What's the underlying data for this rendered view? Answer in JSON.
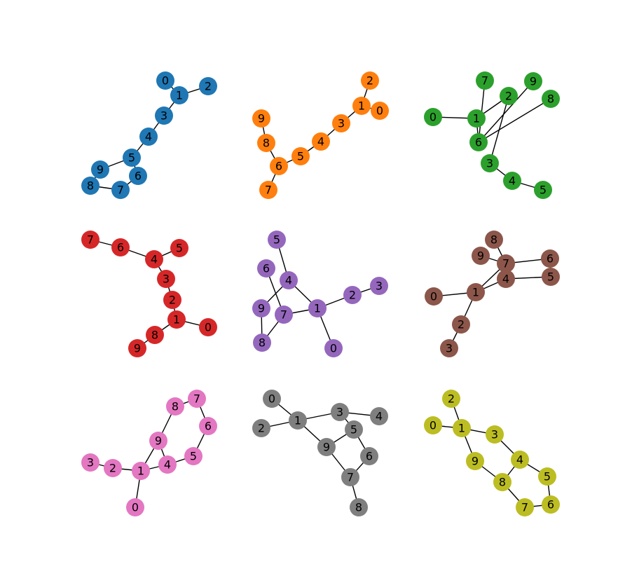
{
  "graphs": [
    {
      "id": "graph-blue",
      "color": "#1f77b4",
      "nodes": [
        {
          "label": "0"
        },
        {
          "label": "1"
        },
        {
          "label": "2"
        },
        {
          "label": "3"
        },
        {
          "label": "4"
        },
        {
          "label": "5"
        },
        {
          "label": "6"
        },
        {
          "label": "7"
        },
        {
          "label": "8"
        },
        {
          "label": "9"
        }
      ],
      "edges": [
        [
          0,
          1
        ],
        [
          1,
          2
        ],
        [
          1,
          3
        ],
        [
          3,
          4
        ],
        [
          4,
          5
        ],
        [
          5,
          9
        ],
        [
          5,
          6
        ],
        [
          9,
          8
        ],
        [
          8,
          7
        ],
        [
          7,
          6
        ]
      ]
    },
    {
      "id": "graph-orange",
      "color": "#ff7f0e",
      "nodes": [
        {
          "label": "0"
        },
        {
          "label": "1"
        },
        {
          "label": "2"
        },
        {
          "label": "3"
        },
        {
          "label": "4"
        },
        {
          "label": "5"
        },
        {
          "label": "6"
        },
        {
          "label": "7"
        },
        {
          "label": "8"
        },
        {
          "label": "9"
        }
      ],
      "edges": [
        [
          2,
          1
        ],
        [
          1,
          0
        ],
        [
          1,
          3
        ],
        [
          3,
          4
        ],
        [
          4,
          5
        ],
        [
          5,
          6
        ],
        [
          6,
          7
        ],
        [
          6,
          8
        ],
        [
          8,
          9
        ]
      ]
    },
    {
      "id": "graph-green",
      "color": "#2ca02c",
      "nodes": [
        {
          "label": "0"
        },
        {
          "label": "1"
        },
        {
          "label": "2"
        },
        {
          "label": "3"
        },
        {
          "label": "4"
        },
        {
          "label": "5"
        },
        {
          "label": "6"
        },
        {
          "label": "7"
        },
        {
          "label": "8"
        },
        {
          "label": "9"
        }
      ],
      "edges": [
        [
          7,
          6
        ],
        [
          6,
          9
        ],
        [
          6,
          8
        ],
        [
          6,
          1
        ],
        [
          0,
          1
        ],
        [
          1,
          2
        ],
        [
          2,
          3
        ],
        [
          3,
          4
        ],
        [
          4,
          5
        ]
      ]
    },
    {
      "id": "graph-red",
      "color": "#d62728",
      "nodes": [
        {
          "label": "0"
        },
        {
          "label": "1"
        },
        {
          "label": "2"
        },
        {
          "label": "3"
        },
        {
          "label": "4"
        },
        {
          "label": "5"
        },
        {
          "label": "6"
        },
        {
          "label": "7"
        },
        {
          "label": "8"
        },
        {
          "label": "9"
        }
      ],
      "edges": [
        [
          7,
          6
        ],
        [
          6,
          4
        ],
        [
          4,
          5
        ],
        [
          4,
          3
        ],
        [
          3,
          2
        ],
        [
          2,
          1
        ],
        [
          1,
          0
        ],
        [
          1,
          8
        ],
        [
          8,
          9
        ]
      ]
    },
    {
      "id": "graph-purple",
      "color": "#9467bd",
      "nodes": [
        {
          "label": "0"
        },
        {
          "label": "1"
        },
        {
          "label": "2"
        },
        {
          "label": "3"
        },
        {
          "label": "4"
        },
        {
          "label": "5"
        },
        {
          "label": "6"
        },
        {
          "label": "7"
        },
        {
          "label": "8"
        },
        {
          "label": "9"
        }
      ],
      "edges": [
        [
          5,
          4
        ],
        [
          6,
          7
        ],
        [
          4,
          9
        ],
        [
          4,
          1
        ],
        [
          7,
          1
        ],
        [
          9,
          8
        ],
        [
          8,
          7
        ],
        [
          1,
          2
        ],
        [
          2,
          3
        ],
        [
          1,
          0
        ]
      ]
    },
    {
      "id": "graph-brown",
      "color": "#8c564b",
      "nodes": [
        {
          "label": "0"
        },
        {
          "label": "1"
        },
        {
          "label": "2"
        },
        {
          "label": "3"
        },
        {
          "label": "4"
        },
        {
          "label": "5"
        },
        {
          "label": "6"
        },
        {
          "label": "7"
        },
        {
          "label": "8"
        },
        {
          "label": "9"
        }
      ],
      "edges": [
        [
          8,
          7
        ],
        [
          9,
          7
        ],
        [
          7,
          6
        ],
        [
          7,
          4
        ],
        [
          7,
          1
        ],
        [
          6,
          5
        ],
        [
          4,
          5
        ],
        [
          4,
          1
        ],
        [
          0,
          1
        ],
        [
          1,
          2
        ],
        [
          2,
          3
        ]
      ]
    },
    {
      "id": "graph-pink",
      "color": "#e377c2",
      "nodes": [
        {
          "label": "0"
        },
        {
          "label": "1"
        },
        {
          "label": "2"
        },
        {
          "label": "3"
        },
        {
          "label": "4"
        },
        {
          "label": "5"
        },
        {
          "label": "6"
        },
        {
          "label": "7"
        },
        {
          "label": "8"
        },
        {
          "label": "9"
        }
      ],
      "edges": [
        [
          8,
          7
        ],
        [
          7,
          6
        ],
        [
          6,
          5
        ],
        [
          5,
          4
        ],
        [
          8,
          9
        ],
        [
          9,
          4
        ],
        [
          9,
          1
        ],
        [
          3,
          2
        ],
        [
          2,
          1
        ],
        [
          1,
          4
        ],
        [
          1,
          0
        ]
      ]
    },
    {
      "id": "graph-gray",
      "color": "#7f7f7f",
      "nodes": [
        {
          "label": "0"
        },
        {
          "label": "1"
        },
        {
          "label": "2"
        },
        {
          "label": "3"
        },
        {
          "label": "4"
        },
        {
          "label": "5"
        },
        {
          "label": "6"
        },
        {
          "label": "7"
        },
        {
          "label": "8"
        },
        {
          "label": "9"
        }
      ],
      "edges": [
        [
          0,
          1
        ],
        [
          2,
          1
        ],
        [
          1,
          3
        ],
        [
          3,
          4
        ],
        [
          3,
          5
        ],
        [
          1,
          9
        ],
        [
          9,
          5
        ],
        [
          5,
          6
        ],
        [
          9,
          7
        ],
        [
          6,
          7
        ],
        [
          7,
          8
        ]
      ]
    },
    {
      "id": "graph-olive",
      "color": "#bcbd22",
      "nodes": [
        {
          "label": "0"
        },
        {
          "label": "1"
        },
        {
          "label": "2"
        },
        {
          "label": "3"
        },
        {
          "label": "4"
        },
        {
          "label": "5"
        },
        {
          "label": "6"
        },
        {
          "label": "7"
        },
        {
          "label": "8"
        },
        {
          "label": "9"
        }
      ],
      "edges": [
        [
          2,
          1
        ],
        [
          0,
          1
        ],
        [
          1,
          3
        ],
        [
          1,
          9
        ],
        [
          3,
          4
        ],
        [
          9,
          8
        ],
        [
          4,
          8
        ],
        [
          4,
          5
        ],
        [
          8,
          7
        ],
        [
          5,
          6
        ],
        [
          7,
          6
        ]
      ]
    }
  ]
}
